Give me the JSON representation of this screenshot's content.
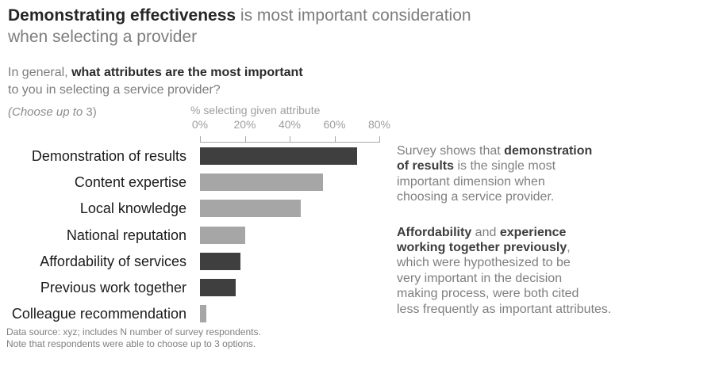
{
  "colors": {
    "dark_bar": "#3f3f3f",
    "gray_bar": "#a6a6a6",
    "axis": "#a8a8a8",
    "title_dark": "#262626",
    "body_gray": "#7f7f7f"
  },
  "title": {
    "bold": "Demonstrating effectiveness",
    "rest": " is most important consideration\nwhen selecting a provider"
  },
  "question": {
    "prefix": "In general, ",
    "bold": "what attributes are the most important",
    "suffix": "\nto you in selecting a service provider?"
  },
  "choose_note": {
    "italic": "(Choose up to ",
    "plain": "3)"
  },
  "chart_data": {
    "type": "bar",
    "orientation": "horizontal",
    "title": "",
    "axis_title": "% selecting given attribute",
    "xlabel": "% selecting given attribute",
    "ylabel": "",
    "xlim": [
      0,
      80
    ],
    "grid": false,
    "tick_labels": [
      "0%",
      "20%",
      "40%",
      "60%",
      "80%"
    ],
    "categories": [
      "Demonstration of results",
      "Content expertise",
      "Local knowledge",
      "National reputation",
      "Affordability of services",
      "Previous work together",
      "Colleague recommendation"
    ],
    "values": [
      70,
      55,
      45,
      20,
      18,
      16,
      3
    ],
    "bar_colors": [
      "dark",
      "gray",
      "gray",
      "gray",
      "dark",
      "dark",
      "gray"
    ]
  },
  "commentary": {
    "para1": {
      "pre": "Survey shows that ",
      "bold": "demonstration\nof results",
      "post": " is the single most\nimportant dimension when\nchoosing a service provider."
    },
    "para2": {
      "bold1": "Affordability",
      "mid": " and ",
      "bold2": "experience\nworking together previously",
      "post": ",\nwhich were hypothesized to be\nvery important in the decision\nmaking process, were both cited\nless frequently as important attributes."
    }
  },
  "footnote": "Data source: xyz; includes N number of survey respondents.\nNote that respondents were able to choose up to 3 options."
}
